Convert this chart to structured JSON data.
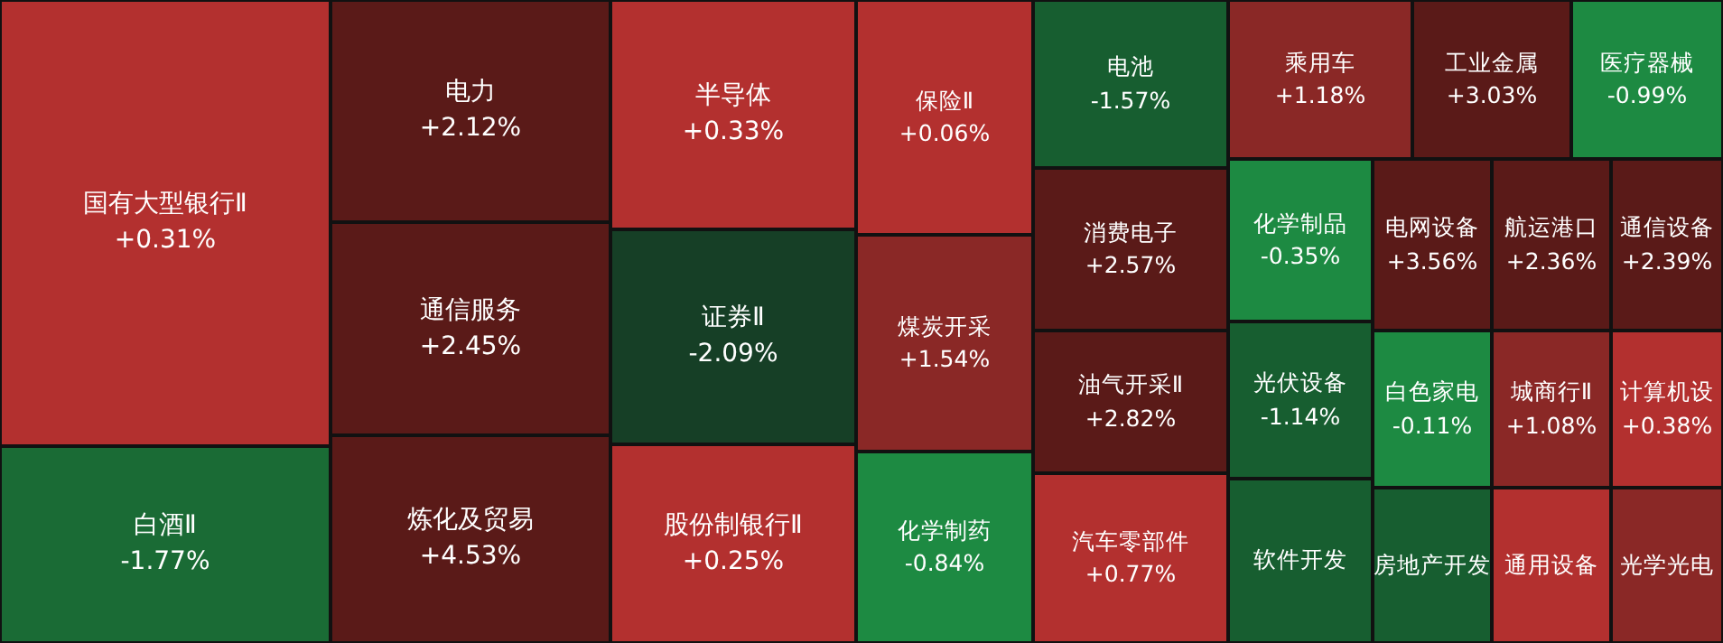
{
  "chart_data": {
    "type": "other",
    "categories": [
      "国有大型银行Ⅱ",
      "白酒Ⅱ",
      "电力",
      "通信服务",
      "炼化及贸易",
      "半导体",
      "证券Ⅱ",
      "股份制银行Ⅱ",
      "保险Ⅱ",
      "煤炭开采",
      "化学制药",
      "电池",
      "消费电子",
      "油气开采Ⅱ",
      "汽车零部件",
      "乘用车",
      "工业金属",
      "医疗器械",
      "化学制品",
      "光伏设备",
      "软件开发",
      "电网设备",
      "航运港口",
      "通信设备",
      "白色家电",
      "城商行Ⅱ",
      "计算机设",
      "房地产开发",
      "通用设备",
      "光学光电"
    ],
    "values": [
      0.31,
      -1.77,
      2.12,
      2.45,
      4.53,
      0.33,
      -2.09,
      0.25,
      0.06,
      1.54,
      -0.84,
      -1.57,
      2.57,
      2.82,
      0.77,
      1.18,
      3.03,
      -0.99,
      -0.35,
      -1.14,
      null,
      3.56,
      2.36,
      2.39,
      -0.11,
      1.08,
      0.38,
      null,
      null,
      null
    ],
    "value_labels": [
      "+0.31%",
      "-1.77%",
      "+2.12%",
      "+2.45%",
      "+4.53%",
      "+0.33%",
      "-2.09%",
      "+0.25%",
      "+0.06%",
      "+1.54%",
      "-0.84%",
      "-1.57%",
      "+2.57%",
      "+2.82%",
      "+0.77%",
      "+1.18%",
      "+3.03%",
      "-0.99%",
      "-0.35%",
      "-1.14%",
      null,
      "+3.56%",
      "+2.36%",
      "+2.39%",
      "-0.11%",
      "+1.08%",
      "+0.38%",
      null,
      null,
      null
    ],
    "colors": [
      "#b3302f",
      "#1a6b35",
      "#5a1a18",
      "#5a1a18",
      "#5a1a18",
      "#b3302f",
      "#163f26",
      "#b3302f",
      "#b3302f",
      "#8a2826",
      "#1d8a42",
      "#175e30",
      "#5a1a18",
      "#5a1a18",
      "#b3302f",
      "#8a2826",
      "#5a1a18",
      "#1d8a42",
      "#1d8a42",
      "#175e30",
      "#175e30",
      "#5a1a18",
      "#5a1a18",
      "#5a1a18",
      "#1d8a42",
      "#8a2826",
      "#b3302f",
      "#175e30",
      "#b3302f",
      "#8a2826"
    ]
  }
}
